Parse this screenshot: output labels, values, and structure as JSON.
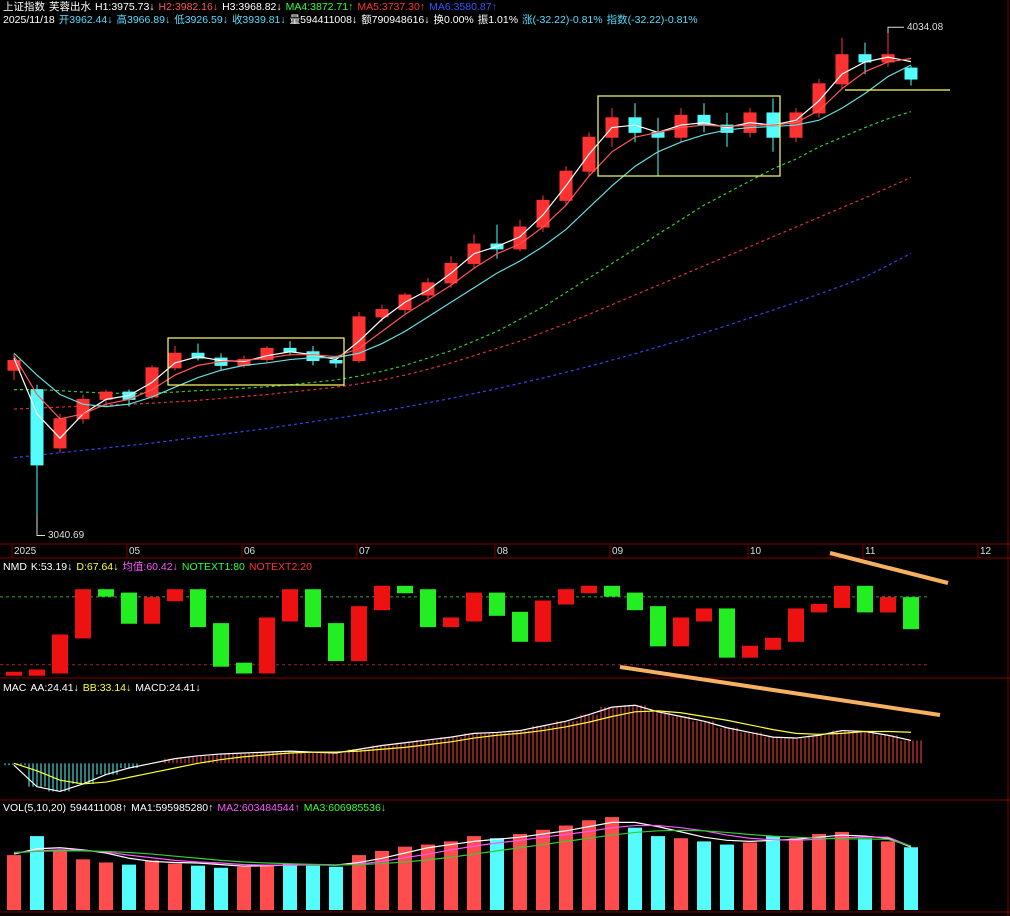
{
  "chart_data": [
    {
      "type": "candlestick",
      "info": [
        [
          {
            "text": "上证指数",
            "color": "#ffffff"
          },
          {
            "text": "芙蓉出水",
            "color": "#ffffff"
          },
          {
            "text": "H1:3975.73↓",
            "color": "#ffffff"
          },
          {
            "text": "H2:3982.16↓",
            "color": "#ff5555"
          },
          {
            "text": "H3:3968.82↓",
            "color": "#ffffff"
          },
          {
            "text": "MA4:3872.71↑",
            "color": "#33ff33"
          },
          {
            "text": "MA5:3737.30↑",
            "color": "#ff3333"
          },
          {
            "text": "MA6:3580.87↑",
            "color": "#3355ff"
          }
        ],
        [
          {
            "text": "2025/11/18",
            "color": "#ffffff"
          },
          {
            "text": "开3962.44↓",
            "color": "#55ddff"
          },
          {
            "text": "高3966.89↓",
            "color": "#55ddff"
          },
          {
            "text": "低3926.59↓",
            "color": "#55ddff"
          },
          {
            "text": "收3939.81↓",
            "color": "#55ddff"
          },
          {
            "text": "量594411008↓",
            "color": "#ffffff"
          },
          {
            "text": "额790948616↓",
            "color": "#ffffff"
          },
          {
            "text": "换0.00%",
            "color": "#ffffff"
          },
          {
            "text": "振1.01%",
            "color": "#ffffff"
          },
          {
            "text": "涨(-32.22)-0.81%",
            "color": "#55ddff"
          },
          {
            "text": "指数(-32.22)-0.81%",
            "color": "#55ddff"
          }
        ]
      ],
      "categories": [
        "2025",
        null,
        null,
        null,
        null,
        "05",
        null,
        null,
        null,
        null,
        "06",
        null,
        null,
        null,
        null,
        "07",
        null,
        null,
        null,
        null,
        null,
        "08",
        null,
        null,
        null,
        null,
        "09",
        null,
        null,
        null,
        null,
        null,
        "10",
        null,
        null,
        null,
        null,
        "11",
        null,
        null,
        null,
        null,
        "12"
      ],
      "open": [
        3340,
        3300,
        3180,
        3240,
        3280,
        3295,
        3285,
        3345,
        3375,
        3365,
        3350,
        3362,
        3385,
        3378,
        3360,
        3360,
        3450,
        3465,
        3495,
        3520,
        3560,
        3600,
        3590,
        3635,
        3690,
        3750,
        3820,
        3860,
        3830,
        3820,
        3865,
        3845,
        3830,
        3870,
        3820,
        3870,
        3930,
        3990,
        3975,
        3962.44,
        null,
        null,
        null
      ],
      "high": [
        3375,
        3310,
        3250,
        3290,
        3300,
        3300,
        3350,
        3390,
        3395,
        3375,
        3370,
        3390,
        3400,
        3390,
        3370,
        3460,
        3475,
        3500,
        3530,
        3575,
        3620,
        3640,
        3650,
        3700,
        3760,
        3830,
        3880,
        3890,
        3860,
        3880,
        3890,
        3870,
        3880,
        3900,
        3880,
        3940,
        4025,
        4015,
        4034.08,
        3966.89,
        null,
        null,
        null
      ],
      "low": [
        3320,
        3040.69,
        3170,
        3230,
        3270,
        3265,
        3280,
        3340,
        3360,
        3340,
        3345,
        3355,
        3370,
        3350,
        3345,
        3355,
        3440,
        3455,
        3480,
        3510,
        3550,
        3570,
        3585,
        3625,
        3680,
        3740,
        3800,
        3810,
        3740,
        3810,
        3830,
        3800,
        3820,
        3790,
        3810,
        3860,
        3920,
        3950,
        3965,
        3926.59,
        null,
        null,
        null
      ],
      "close": [
        3360,
        3145,
        3240,
        3280,
        3295,
        3280,
        3345,
        3375,
        3365,
        3350,
        3362,
        3385,
        3378,
        3360,
        3355,
        3450,
        3465,
        3495,
        3520,
        3560,
        3600,
        3590,
        3635,
        3690,
        3750,
        3820,
        3860,
        3830,
        3820,
        3865,
        3845,
        3830,
        3870,
        3820,
        3870,
        3930,
        3990,
        3975,
        3990,
        3939.81,
        null,
        null,
        null
      ],
      "series": [
        {
          "color": "#ffffff",
          "dashed": false,
          "values": [
            3365,
            3250,
            3200,
            3250,
            3280,
            3288,
            3315,
            3355,
            3368,
            3360,
            3358,
            3370,
            3378,
            3372,
            3362,
            3400,
            3445,
            3480,
            3505,
            3540,
            3580,
            3595,
            3615,
            3660,
            3720,
            3785,
            3840,
            3845,
            3830,
            3845,
            3850,
            3840,
            3850,
            3845,
            3855,
            3895,
            3950,
            3975,
            3985,
            3975.73,
            null,
            null,
            null
          ]
        },
        {
          "color": "#ff5555",
          "dashed": false,
          "values": [
            3370,
            3290,
            3240,
            3250,
            3270,
            3280,
            3300,
            3330,
            3350,
            3358,
            3360,
            3365,
            3372,
            3372,
            3368,
            3385,
            3420,
            3455,
            3485,
            3515,
            3550,
            3580,
            3600,
            3635,
            3680,
            3740,
            3790,
            3820,
            3830,
            3840,
            3845,
            3842,
            3845,
            3845,
            3850,
            3875,
            3920,
            3955,
            3975,
            3982.16,
            null,
            null,
            null
          ]
        },
        {
          "color": "#66dddd",
          "dashed": false,
          "values": [
            3375,
            3330,
            3290,
            3270,
            3265,
            3270,
            3285,
            3305,
            3325,
            3340,
            3350,
            3355,
            3362,
            3366,
            3366,
            3375,
            3395,
            3420,
            3450,
            3480,
            3510,
            3540,
            3565,
            3595,
            3630,
            3675,
            3720,
            3760,
            3790,
            3810,
            3825,
            3835,
            3840,
            3842,
            3845,
            3855,
            3880,
            3910,
            3945,
            3968.82,
            null,
            null,
            null
          ]
        },
        {
          "color": "#33cc33",
          "dashed": true,
          "values": [
            3300,
            3300,
            3298,
            3295,
            3293,
            3292,
            3293,
            3295,
            3298,
            3300,
            3303,
            3306,
            3310,
            3315,
            3320,
            3328,
            3338,
            3350,
            3365,
            3380,
            3400,
            3420,
            3445,
            3470,
            3500,
            3530,
            3560,
            3590,
            3620,
            3650,
            3680,
            3705,
            3730,
            3755,
            3775,
            3800,
            3820,
            3840,
            3858,
            3872.71,
            null,
            null,
            null
          ]
        },
        {
          "color": "#dd3333",
          "dashed": true,
          "values": [
            3260,
            3262,
            3264,
            3266,
            3268,
            3270,
            3272,
            3275,
            3278,
            3282,
            3286,
            3290,
            3295,
            3300,
            3305,
            3312,
            3320,
            3330,
            3342,
            3355,
            3370,
            3385,
            3400,
            3418,
            3436,
            3455,
            3475,
            3495,
            3515,
            3535,
            3555,
            3575,
            3595,
            3615,
            3635,
            3655,
            3675,
            3695,
            3716,
            3737.3,
            null,
            null,
            null
          ]
        },
        {
          "color": "#3344ee",
          "dashed": true,
          "values": [
            3160,
            3165,
            3170,
            3175,
            3180,
            3185,
            3190,
            3196,
            3202,
            3208,
            3214,
            3220,
            3227,
            3234,
            3241,
            3248,
            3256,
            3264,
            3273,
            3282,
            3292,
            3302,
            3313,
            3324,
            3336,
            3348,
            3361,
            3374,
            3388,
            3402,
            3417,
            3432,
            3448,
            3464,
            3480,
            3497,
            3514,
            3532,
            3556,
            3580.87,
            null,
            null,
            null
          ]
        }
      ],
      "ylim": [
        2980,
        4045
      ],
      "up_color": "#ff3232",
      "down_color": "#54fcfc",
      "axis_color": "#800000"
    },
    {
      "type": "stepbar",
      "info": [
        [
          {
            "text": "NMD",
            "color": "#ffffff"
          },
          {
            "text": "K:53.19↓",
            "color": "#ffffff"
          },
          {
            "text": "D:67.64↓",
            "color": "#ffff33"
          },
          {
            "text": "均值:60.42↓",
            "color": "#ff55ff"
          },
          {
            "text": "NOTEXT1:80",
            "color": "#33ff33"
          },
          {
            "text": "NOTEXT2:20",
            "color": "#ff3333"
          }
        ]
      ],
      "values": [
        12,
        14,
        45,
        85,
        82,
        58,
        78,
        85,
        55,
        20,
        14,
        60,
        85,
        55,
        25,
        70,
        88,
        85,
        55,
        60,
        82,
        65,
        42,
        75,
        85,
        88,
        82,
        70,
        38,
        60,
        68,
        28,
        35,
        42,
        68,
        72,
        88,
        68,
        78,
        53.19
      ],
      "reference_lines": [
        {
          "value": 80,
          "color": "#33aa33"
        },
        {
          "value": 20,
          "color": "#aa2222"
        }
      ],
      "ylim": [
        10,
        102
      ],
      "up_color": "#ee1111",
      "down_color": "#22ee22"
    },
    {
      "type": "macd",
      "info": [
        [
          {
            "text": "MAC",
            "color": "#ffffff"
          },
          {
            "text": "AA:24.41↓",
            "color": "#ffffff"
          },
          {
            "text": "BB:33.14↓",
            "color": "#ffff33"
          },
          {
            "text": "MACD:24.41↓",
            "color": "#ffffff"
          }
        ]
      ],
      "values": [
        -2,
        -25,
        -30,
        -22,
        -12,
        -5,
        0,
        5,
        8,
        10,
        11,
        12,
        13,
        12,
        11,
        15,
        19,
        22,
        25,
        28,
        32,
        33,
        35,
        40,
        45,
        52,
        60,
        62,
        55,
        50,
        45,
        38,
        33,
        28,
        27,
        30,
        35,
        34,
        30,
        24.41
      ],
      "series": [
        {
          "color": "#ffffff",
          "values": [
            -2,
            -25,
            -30,
            -22,
            -12,
            -5,
            0,
            5,
            8,
            10,
            11,
            12,
            13,
            12,
            11,
            15,
            19,
            22,
            25,
            28,
            32,
            33,
            35,
            40,
            45,
            52,
            60,
            62,
            55,
            50,
            45,
            38,
            33,
            28,
            27,
            30,
            35,
            34,
            30,
            24.41
          ]
        },
        {
          "color": "#ffff33",
          "values": [
            0,
            -8,
            -18,
            -22,
            -20,
            -15,
            -10,
            -5,
            0,
            4,
            7,
            9,
            11,
            12,
            12,
            13,
            15,
            17,
            20,
            23,
            27,
            30,
            32,
            35,
            39,
            44,
            50,
            55,
            56,
            54,
            50,
            46,
            41,
            36,
            32,
            31,
            32,
            34,
            34,
            33.14
          ]
        }
      ],
      "ylim": [
        -37,
        74
      ],
      "up_color": "#ff4444",
      "down_color": "#54fcfc"
    },
    {
      "type": "volume",
      "info": [
        [
          {
            "text": "VOL(5,10,20)",
            "color": "#ffffff"
          },
          {
            "text": "594411008↑",
            "color": "#ffffff"
          },
          {
            "text": "MA1:595985280↑",
            "color": "#ffffff"
          },
          {
            "text": "MA2:603484544↑",
            "color": "#ff55ff"
          },
          {
            "text": "MA3:606985536↓",
            "color": "#33ff33"
          }
        ]
      ],
      "values": [
        520000000,
        700000000,
        560000000,
        480000000,
        450000000,
        430000000,
        470000000,
        440000000,
        420000000,
        400000000,
        410000000,
        430000000,
        440000000,
        420000000,
        410000000,
        520000000,
        560000000,
        600000000,
        620000000,
        650000000,
        700000000,
        680000000,
        720000000,
        760000000,
        800000000,
        850000000,
        880000000,
        780000000,
        700000000,
        680000000,
        650000000,
        620000000,
        640000000,
        700000000,
        680000000,
        720000000,
        740000000,
        680000000,
        650000000,
        594411008
      ],
      "series": [
        {
          "color": "#ffffff",
          "values": [
            530000000,
            580000000,
            590000000,
            570000000,
            540000000,
            490000000,
            460000000,
            450000000,
            445000000,
            430000000,
            415000000,
            420000000,
            425000000,
            430000000,
            425000000,
            450000000,
            490000000,
            540000000,
            590000000,
            620000000,
            650000000,
            670000000,
            690000000,
            720000000,
            750000000,
            790000000,
            830000000,
            830000000,
            790000000,
            740000000,
            690000000,
            660000000,
            650000000,
            660000000,
            670000000,
            690000000,
            710000000,
            700000000,
            680000000,
            595985280
          ]
        },
        {
          "color": "#ff55ff",
          "values": [
            540000000,
            560000000,
            570000000,
            565000000,
            550000000,
            520000000,
            495000000,
            470000000,
            455000000,
            445000000,
            430000000,
            425000000,
            425000000,
            427000000,
            425000000,
            435000000,
            460000000,
            495000000,
            530000000,
            570000000,
            605000000,
            635000000,
            660000000,
            690000000,
            715000000,
            745000000,
            780000000,
            800000000,
            800000000,
            780000000,
            750000000,
            710000000,
            680000000,
            665000000,
            660000000,
            670000000,
            685000000,
            690000000,
            690000000,
            603484544
          ]
        },
        {
          "color": "#33cc33",
          "values": [
            545000000,
            555000000,
            560000000,
            560000000,
            555000000,
            545000000,
            530000000,
            510000000,
            490000000,
            470000000,
            455000000,
            445000000,
            438000000,
            432000000,
            428000000,
            430000000,
            440000000,
            455000000,
            475000000,
            500000000,
            530000000,
            560000000,
            590000000,
            620000000,
            650000000,
            680000000,
            710000000,
            735000000,
            750000000,
            755000000,
            750000000,
            735000000,
            715000000,
            700000000,
            690000000,
            680000000,
            675000000,
            672000000,
            670000000,
            606985536
          ]
        }
      ],
      "ylim": [
        0,
        900000000
      ],
      "up_color": "#ff4d4d",
      "down_color": "#54fcfc"
    }
  ]
}
